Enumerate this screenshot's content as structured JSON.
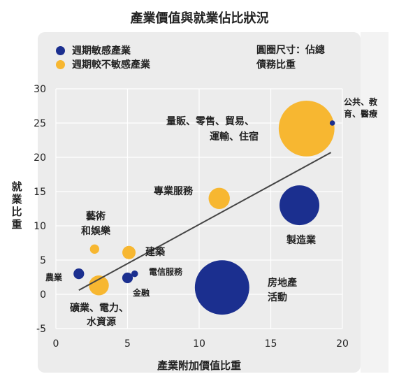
{
  "chart_data": {
    "type": "scatter",
    "title": "產業價值與就業佔比狀況",
    "xlabel": "產業附加價值比重",
    "ylabel": "就業比重",
    "xlim": [
      0,
      20
    ],
    "ylim": [
      -5,
      30
    ],
    "xticks": [
      0,
      5,
      10,
      15,
      20
    ],
    "yticks": [
      -5,
      0,
      5,
      10,
      15,
      20,
      25,
      30
    ],
    "grid": true,
    "legend_position": "top-left",
    "size_note": [
      "圓圈尺寸：佔總",
      "債務比重"
    ],
    "series": [
      {
        "name": "週期敏感產業",
        "color": "#1b2f8f"
      },
      {
        "name": "週期較不敏感產業",
        "color": "#f7b731"
      }
    ],
    "points": [
      {
        "label": "量販、零售、貿易、運輸、住宿",
        "label_lines": [
          "量販、零售、貿易、",
          "運輸、住宿"
        ],
        "x": 17.5,
        "y": 24.2,
        "size": 42,
        "series": 1
      },
      {
        "label": "公共、教育、醫療",
        "label_lines": [
          "公共、教",
          "育、醫療"
        ],
        "x": 19.3,
        "y": 25.0,
        "size": 4,
        "series": 0
      },
      {
        "label": "專業服務",
        "label_lines": [
          "專業服務"
        ],
        "x": 11.4,
        "y": 14.0,
        "size": 16,
        "series": 1
      },
      {
        "label": "製造業",
        "label_lines": [
          "製造業"
        ],
        "x": 17.0,
        "y": 13.0,
        "size": 30,
        "series": 0
      },
      {
        "label": "藝術和娛樂",
        "label_lines": [
          "藝術",
          "和娛樂"
        ],
        "x": 2.7,
        "y": 6.6,
        "size": 7,
        "series": 1
      },
      {
        "label": "建築",
        "label_lines": [
          "建築"
        ],
        "x": 5.1,
        "y": 6.1,
        "size": 10,
        "series": 1
      },
      {
        "label": "農業",
        "label_lines": [
          "農業"
        ],
        "x": 1.6,
        "y": 3.0,
        "size": 8,
        "series": 0
      },
      {
        "label": "電信服務",
        "label_lines": [
          "電信服務"
        ],
        "x": 5.5,
        "y": 3.0,
        "size": 5,
        "series": 0
      },
      {
        "label": "金融",
        "label_lines": [
          "金融"
        ],
        "x": 5.0,
        "y": 2.4,
        "size": 8,
        "series": 0
      },
      {
        "label": "礦業、電力、水資源",
        "label_lines": [
          "礦業、電力、",
          "水資源"
        ],
        "x": 3.0,
        "y": 1.3,
        "size": 15,
        "series": 1
      },
      {
        "label": "房地產活動",
        "label_lines": [
          "房地產",
          "活動"
        ],
        "x": 11.6,
        "y": 1.0,
        "size": 41,
        "series": 0
      }
    ],
    "trendline": {
      "x": [
        1.6,
        19.2
      ],
      "y": [
        0.6,
        20.7
      ]
    }
  }
}
